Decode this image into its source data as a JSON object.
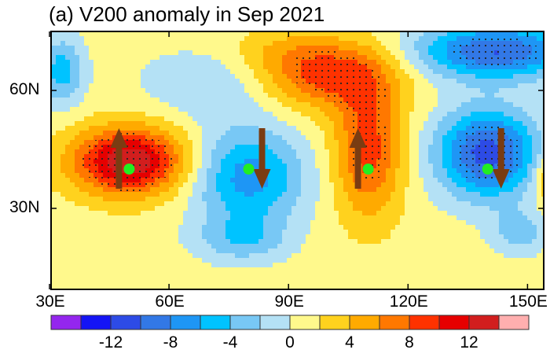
{
  "title": "(a) V200 anomaly in Sep 2021",
  "chart_data": {
    "type": "heatmap",
    "title": "(a) V200 anomaly in Sep 2021",
    "variable": "V200 anomaly",
    "lon_range": [
      30,
      154
    ],
    "lat_range": [
      10,
      75
    ],
    "x_ticks": [
      "30E",
      "60E",
      "90E",
      "120E",
      "150E"
    ],
    "x_tick_values": [
      30,
      60,
      90,
      120,
      150
    ],
    "y_ticks": [
      "30N",
      "60N"
    ],
    "y_tick_values": [
      30,
      60
    ],
    "colorbar": {
      "levels": [
        -14,
        -12,
        -10,
        -8,
        -6,
        -4,
        -2,
        0,
        2,
        4,
        6,
        8,
        10,
        12,
        14
      ],
      "labels": [
        "-12",
        "-8",
        "-4",
        "0",
        "4",
        "8",
        "12"
      ],
      "label_values": [
        -12,
        -8,
        -4,
        0,
        4,
        8,
        12
      ],
      "colors": [
        "#9426ee",
        "#1414f5",
        "#2d4be6",
        "#3278e6",
        "#1e96f5",
        "#00c3ff",
        "#78c8f5",
        "#b4e1f5",
        "#fff98c",
        "#ffd21e",
        "#ffaa00",
        "#ff7800",
        "#ff3200",
        "#e60000",
        "#d21e1e",
        "#ffafaf"
      ]
    },
    "anomaly_centers": [
      {
        "lon": 50,
        "lat": 42,
        "value": 13,
        "slon": 10,
        "slat": 6
      },
      {
        "lon": 80,
        "lat": 38,
        "value": -8,
        "slon": 10,
        "slat": 9
      },
      {
        "lon": 78,
        "lat": 22,
        "value": -4,
        "slon": 8,
        "slat": 4
      },
      {
        "lon": 110,
        "lat": 45,
        "value": 8,
        "slon": 6,
        "slat": 12
      },
      {
        "lon": 100,
        "lat": 64,
        "value": 8,
        "slon": 12,
        "slat": 6
      },
      {
        "lon": 140,
        "lat": 44,
        "value": -12,
        "slon": 9,
        "slat": 8
      },
      {
        "lon": 142,
        "lat": 70,
        "value": -11,
        "slon": 14,
        "slat": 5
      },
      {
        "lon": 148,
        "lat": 24,
        "value": -4,
        "slon": 5,
        "slat": 4
      },
      {
        "lon": 33,
        "lat": 65,
        "value": -6,
        "slon": 4,
        "slat": 6
      },
      {
        "lon": 70,
        "lat": 62,
        "value": -3,
        "slon": 12,
        "slat": 6
      },
      {
        "lon": 156,
        "lat": 38,
        "value": 5,
        "slon": 3,
        "slat": 5
      },
      {
        "lon": 88,
        "lat": 70,
        "value": 2,
        "slon": 10,
        "slat": 4
      }
    ],
    "background_value": 1,
    "markers": [
      {
        "lon": 50,
        "lat": 40,
        "arrow": "up"
      },
      {
        "lon": 80,
        "lat": 40,
        "arrow": "down"
      },
      {
        "lon": 110,
        "lat": 40,
        "arrow": "up"
      },
      {
        "lon": 140,
        "lat": 40,
        "arrow": "down"
      }
    ],
    "marker_color": "#22ee22",
    "arrow_color": "#7a3c12",
    "stipple_threshold": 7
  }
}
